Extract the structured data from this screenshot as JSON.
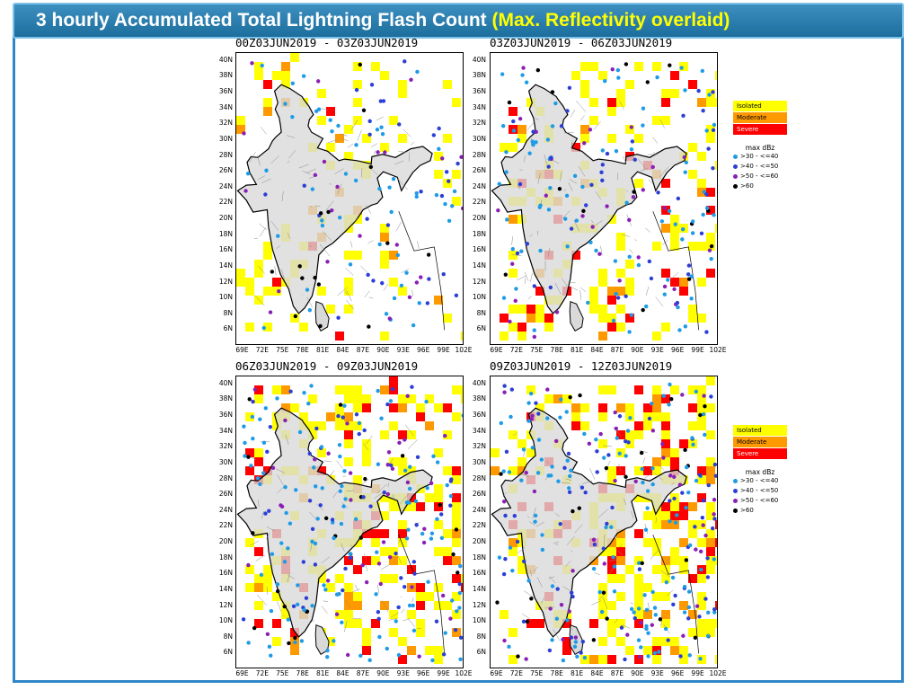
{
  "header": {
    "title_main": "3 hourly Accumulated Total Lightning Flash Count ",
    "title_accent": "(Max. Reflectivity overlaid)"
  },
  "axes": {
    "lat_labels": [
      "40N",
      "38N",
      "36N",
      "34N",
      "32N",
      "30N",
      "28N",
      "26N",
      "24N",
      "22N",
      "20N",
      "18N",
      "16N",
      "14N",
      "12N",
      "10N",
      "8N",
      "6N"
    ],
    "lon_labels": [
      "69E",
      "72E",
      "75E",
      "78E",
      "81E",
      "84E",
      "87E",
      "90E",
      "93E",
      "96E",
      "99E",
      "102E"
    ]
  },
  "panels": [
    {
      "title": "00Z03JUN2019 - 03Z03JUN2019",
      "intensity": 0.25
    },
    {
      "title": "03Z03JUN2019 - 06Z03JUN2019",
      "intensity": 0.55
    },
    {
      "title": "06Z03JUN2019 - 09Z03JUN2019",
      "intensity": 0.85
    },
    {
      "title": "09Z03JUN2019 - 12Z03JUN2019",
      "intensity": 1.0
    }
  ],
  "legend": {
    "categories": [
      {
        "label": "Isolated",
        "color": "#ffff00"
      },
      {
        "label": "Moderate",
        "color": "#ff9900"
      },
      {
        "label": "Severe",
        "color": "#ff0000"
      }
    ],
    "dbz_title": "max dBz",
    "dbz_entries": [
      {
        "label": ">30 - <=40",
        "color": "#1e9be6"
      },
      {
        "label": ">40 - <=50",
        "color": "#2b3fd6"
      },
      {
        "label": ">50 - <=60",
        "color": "#8a1fb5"
      },
      {
        "label": ">60",
        "color": "#000000"
      }
    ]
  },
  "colors": {
    "accent": "#ffff00",
    "header_bg": "#2a7fb0",
    "frame_border": "#2f86c8",
    "land": "#d9d9d9"
  }
}
